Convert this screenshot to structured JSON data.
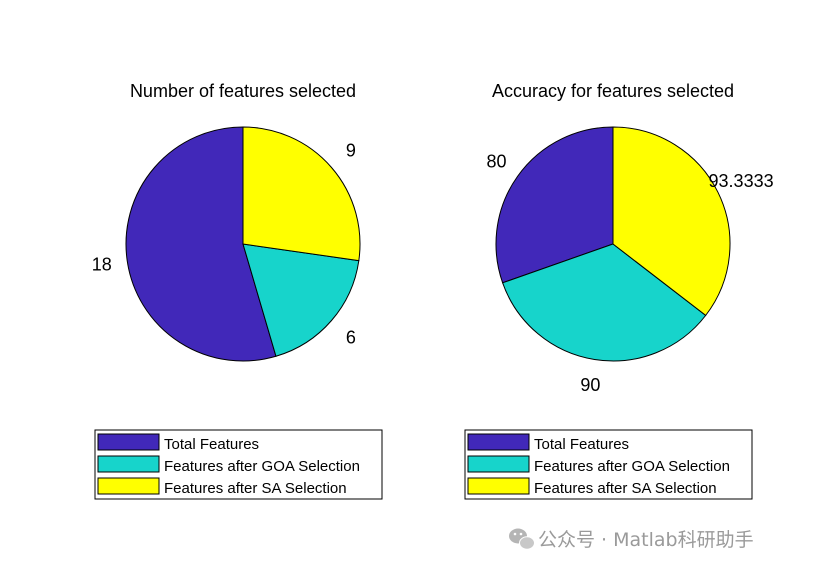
{
  "chart_data": [
    {
      "type": "pie",
      "title": "Number of features selected",
      "categories": [
        "Total Features",
        "Features after GOA Selection",
        "Features after SA Selection"
      ],
      "values": [
        18,
        6,
        9
      ],
      "labels": [
        "18",
        "6",
        "9"
      ],
      "colors": [
        "#4128b9",
        "#17d4cb",
        "#ffff00"
      ],
      "legend": {
        "placement": "bottom",
        "entries": [
          "Total Features",
          "Features after GOA Selection",
          "Features after SA Selection"
        ]
      }
    },
    {
      "type": "pie",
      "title": "Accuracy for features selected",
      "categories": [
        "Total Features",
        "Features after GOA Selection",
        "Features after SA Selection"
      ],
      "values": [
        80,
        90,
        93.3333
      ],
      "labels": [
        "80",
        "90",
        "93.3333"
      ],
      "colors": [
        "#4128b9",
        "#17d4cb",
        "#ffff00"
      ],
      "legend": {
        "placement": "bottom",
        "entries": [
          "Total Features",
          "Features after GOA Selection",
          "Features after SA Selection"
        ]
      }
    }
  ],
  "watermark": {
    "text": "公众号 · Matlab科研助手",
    "icon": "wechat-icon"
  }
}
